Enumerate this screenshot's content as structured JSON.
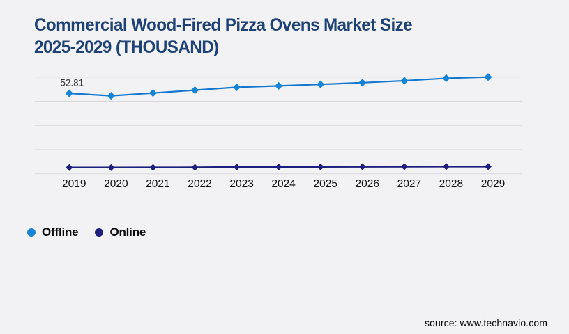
{
  "header": {
    "title_line1": "Commercial Wood-Fired Pizza Ovens Market Size",
    "title_line2": "2025-2029 (THOUSAND)"
  },
  "legend": {
    "items": [
      {
        "label": "Offline",
        "color": "#1583d6"
      },
      {
        "label": "Online",
        "color": "#1e1e7e"
      }
    ]
  },
  "footer": {
    "source": "source: www.technavio.com"
  },
  "colors": {
    "background": "#f2f2f4",
    "title": "#1e4176",
    "gridline": "#d9d9db",
    "axis_label": "#0f0f0f",
    "point_label": "#333333"
  },
  "chart_data": {
    "type": "line",
    "title": "Commercial Wood-Fired Pizza Ovens Market Size 2025-2029 (THOUSAND)",
    "categories": [
      "2019",
      "2020",
      "2021",
      "2022",
      "2023",
      "2024",
      "2025",
      "2026",
      "2027",
      "2028",
      "2029"
    ],
    "series": [
      {
        "name": "Offline",
        "color": "#1583d6",
        "line_color": "#1277cf",
        "marker": "diamond",
        "values": [
          52.81,
          51.2,
          53.0,
          54.9,
          56.8,
          57.7,
          58.7,
          59.8,
          61.1,
          62.7,
          63.5
        ]
      },
      {
        "name": "Online",
        "color": "#1e1e7e",
        "line_color": "#1e1e7e",
        "marker": "diamond",
        "values": [
          4.1,
          4.1,
          4.15,
          4.2,
          4.45,
          4.5,
          4.5,
          4.6,
          4.65,
          4.7,
          4.7
        ]
      }
    ],
    "point_labels": [
      {
        "series": "Offline",
        "category": "2019",
        "text": "52.81"
      }
    ],
    "xlabel": "",
    "ylabel": "",
    "ylim": [
      0,
      63.5
    ],
    "y_axis_labels_visible": false,
    "grid": "horizontal-only",
    "gridline_count": 5,
    "legend_position": "bottom-left"
  }
}
